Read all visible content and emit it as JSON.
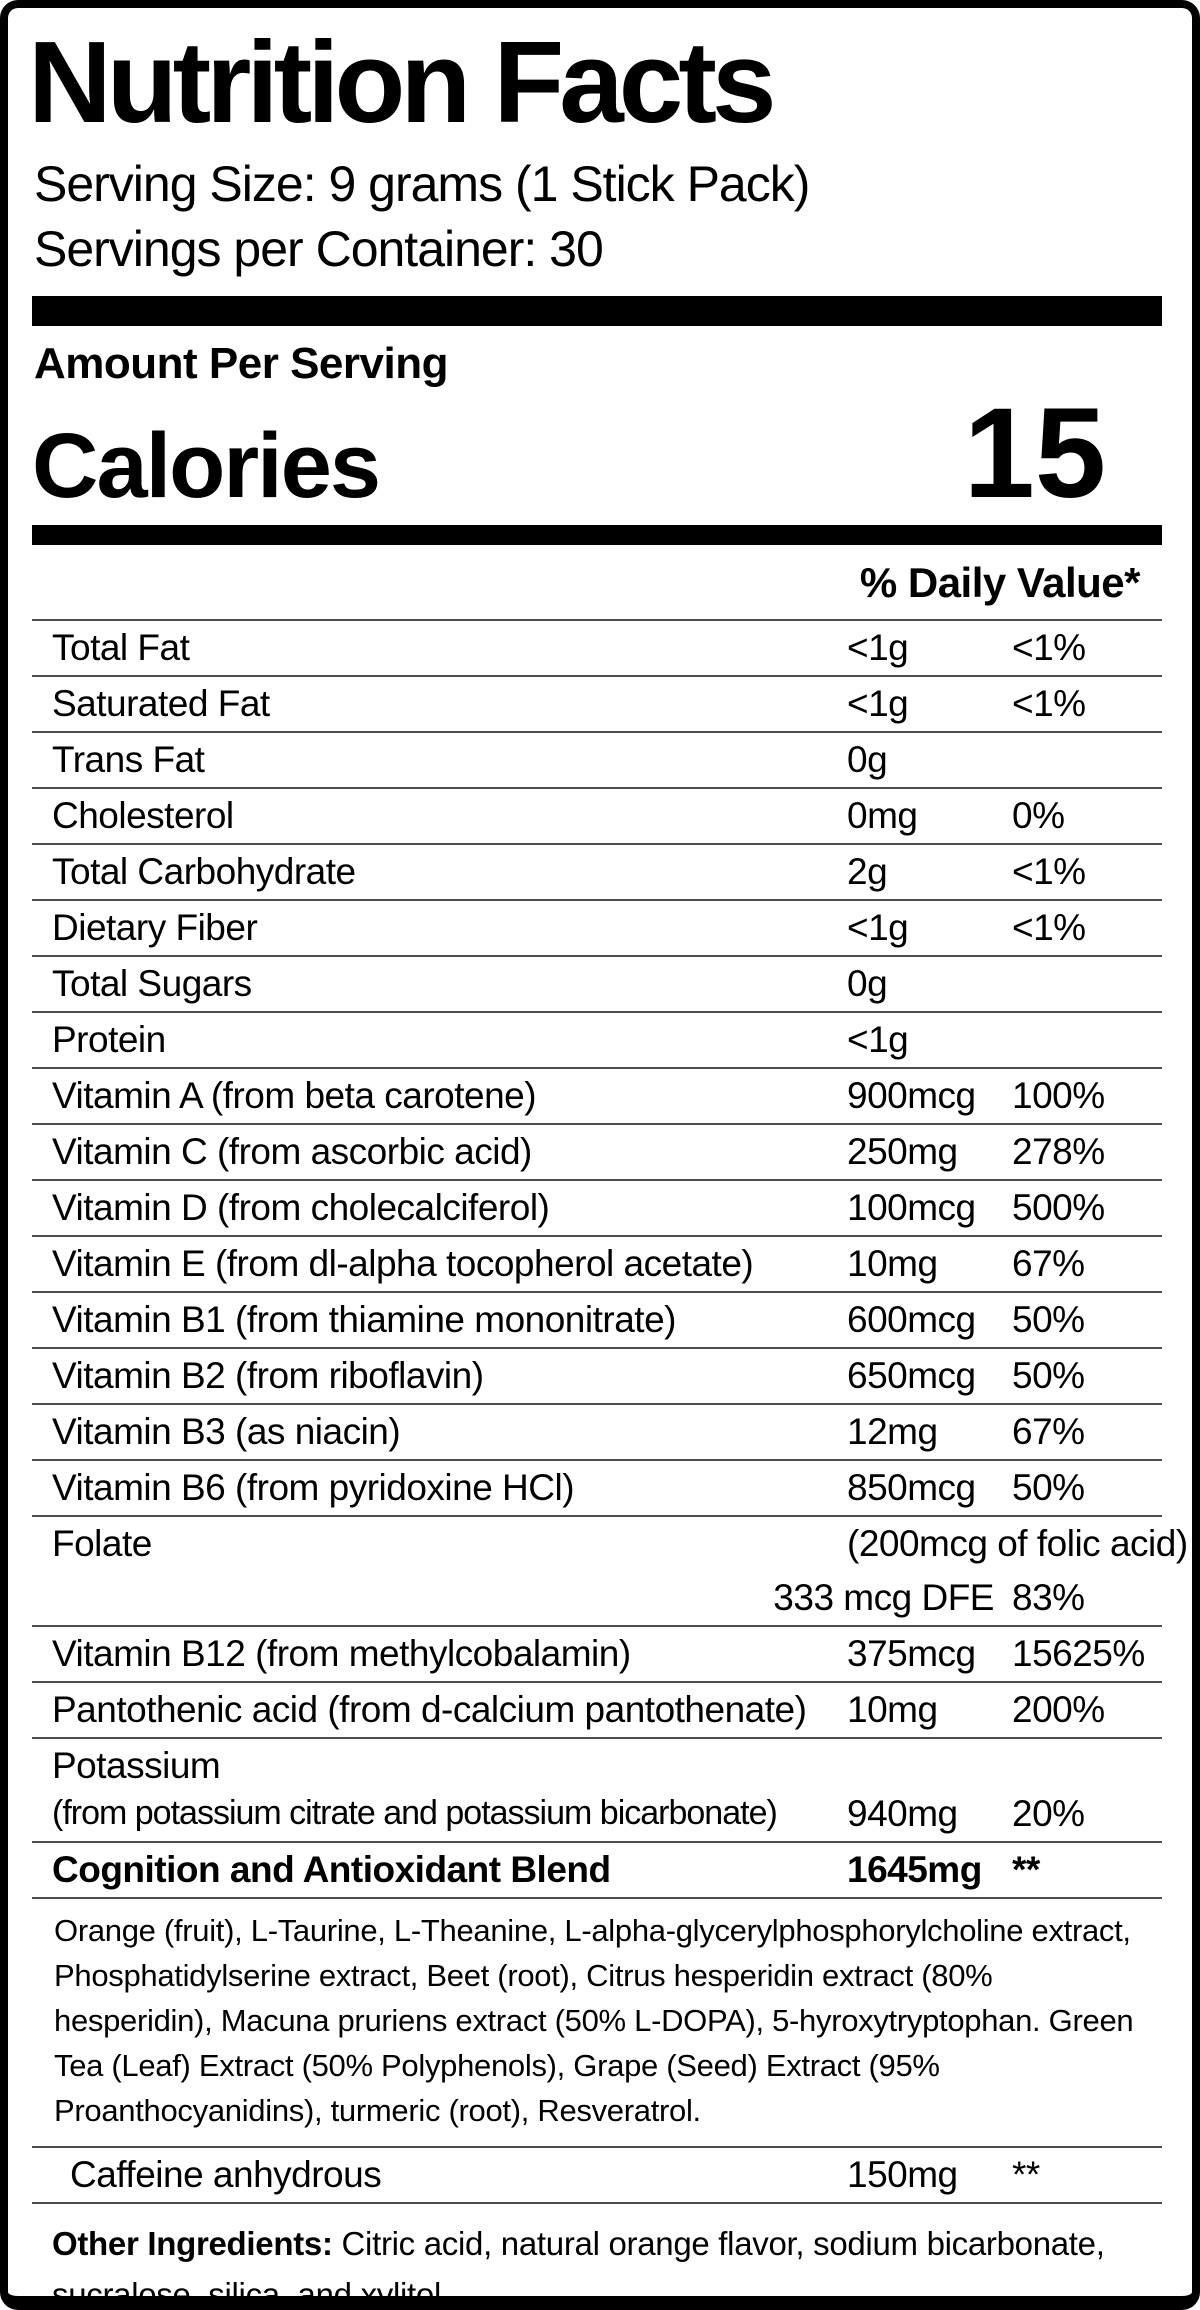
{
  "label": {
    "title": "Nutrition Facts",
    "serving_size": "Serving Size: 9 grams (1 Stick Pack)",
    "servings_per_container": "Servings per Container: 30",
    "amount_per_serving": "Amount Per Serving",
    "calories_label": "Calories",
    "calories_value": "15",
    "daily_value_header": "% Daily Value*",
    "colors": {
      "text": "#000000",
      "divider": "#4d4d4d",
      "background": "#ffffff"
    },
    "table": {
      "rows": [
        {
          "label": "Total Fat",
          "amount": "<1g",
          "dv": "<1%"
        },
        {
          "label": "Saturated Fat",
          "amount": "<1g",
          "dv": "<1%"
        },
        {
          "label": "Trans Fat",
          "amount": "0g",
          "dv": ""
        },
        {
          "label": "Cholesterol",
          "amount": "0mg",
          "dv": "0%"
        },
        {
          "label": "Total Carbohydrate",
          "amount": "2g",
          "dv": "<1%"
        },
        {
          "label": "Dietary Fiber",
          "amount": "<1g",
          "dv": "<1%"
        },
        {
          "label": "Total Sugars",
          "amount": "0g",
          "dv": ""
        },
        {
          "label": "Protein",
          "amount": "<1g",
          "dv": ""
        },
        {
          "label": "Vitamin A (from beta carotene)",
          "amount": "900mcg",
          "dv": "100%"
        },
        {
          "label": "Vitamin C (from ascorbic acid)",
          "amount": "250mg",
          "dv": "278%"
        },
        {
          "label": "Vitamin D (from cholecalciferol)",
          "amount": "100mcg",
          "dv": "500%"
        },
        {
          "label": "Vitamin E (from dl-alpha tocopherol acetate)",
          "amount": "10mg",
          "dv": "67%"
        },
        {
          "label": "Vitamin B1 (from thiamine mononitrate)",
          "amount": "600mcg",
          "dv": "50%"
        },
        {
          "label": "Vitamin B2 (from riboflavin)",
          "amount": "650mcg",
          "dv": "50%"
        },
        {
          "label": "Vitamin B3 (as niacin)",
          "amount": "12mg",
          "dv": "67%"
        },
        {
          "label": "Vitamin B6 (from pyridoxine HCl)",
          "amount": "850mcg",
          "dv": "50%"
        },
        {
          "label": "Folate",
          "note": "(200mcg of folic acid)",
          "amount": "333 mcg DFE",
          "dv": "83%",
          "type": "folate"
        },
        {
          "label": "Vitamin B12 (from methylcobalamin)",
          "amount": "375mcg",
          "dv": "15625%"
        },
        {
          "label": "Pantothenic acid (from d-calcium pantothenate)",
          "amount": "10mg",
          "dv": "200%"
        },
        {
          "label": "Potassium",
          "sublabel": "(from potassium citrate and potassium bicarbonate)",
          "amount": "940mg",
          "dv": "20%",
          "type": "twoline"
        },
        {
          "label": "Cognition and Antioxidant Blend",
          "amount": "1645mg",
          "dv": "**",
          "bold": true
        }
      ]
    },
    "blend_description": "Orange (fruit), L-Taurine, L-Theanine, L-alpha-glycerylphosphorylcholine extract, Phosphatidylserine extract, Beet (root), Citrus hesperidin extract (80% hesperidin), Macuna pruriens extract (50% L-DOPA), 5-hyroxytryptophan. Green Tea (Leaf) Extract (50% Polyphenols), Grape (Seed) Extract (95% Proanthocyanidins), turmeric (root), Resveratrol.",
    "caffeine_row": {
      "label": "Caffeine anhydrous",
      "amount": "150mg",
      "dv": "**",
      "indent": true
    },
    "other_ingredients_label": "Other Ingredients:",
    "other_ingredients_text": "Citric acid, natural orange flavor, sodium bicarbonate, sucralose, silica, and xylitol."
  }
}
